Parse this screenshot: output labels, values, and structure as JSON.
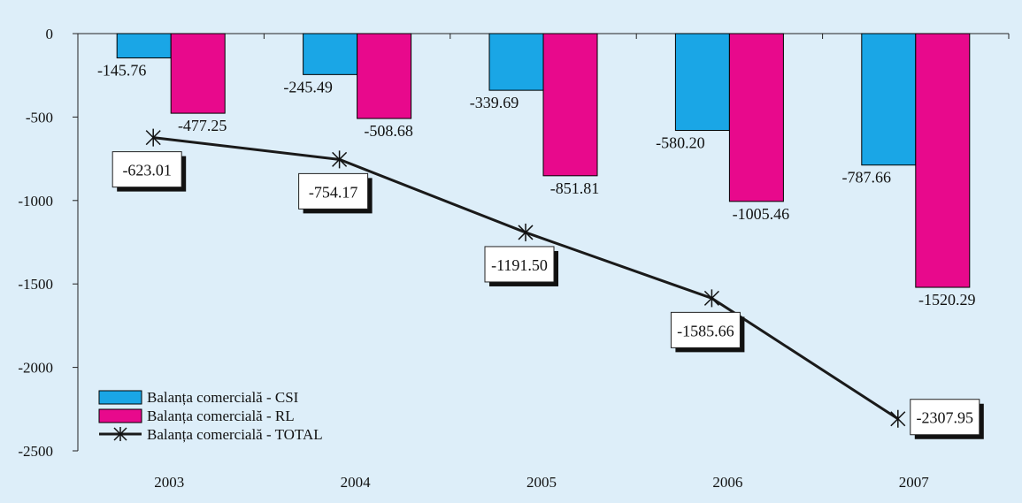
{
  "chart_data": {
    "type": "bar",
    "categories": [
      "2003",
      "2004",
      "2005",
      "2006",
      "2007"
    ],
    "series": [
      {
        "name": "Balanța comercială - CSI",
        "kind": "bar",
        "color": "#1aa6e6",
        "values": [
          -145.76,
          -245.49,
          -339.69,
          -580.2,
          -787.66
        ],
        "labels": [
          "-145.76",
          "-245.49",
          "-339.69",
          "-580.20",
          "-787.66"
        ]
      },
      {
        "name": "Balanța comercială - RL",
        "kind": "bar",
        "color": "#e8098c",
        "values": [
          -477.25,
          -508.68,
          -851.81,
          -1005.46,
          -1520.29
        ],
        "labels": [
          "-477.25",
          "-508.68",
          "-851.81",
          "-1005.46",
          "-1520.29"
        ]
      },
      {
        "name": "Balanța comercială - TOTAL",
        "kind": "line",
        "color": "#1a1a1a",
        "marker": "asterisk",
        "values": [
          -623.01,
          -754.17,
          -1191.5,
          -1585.66,
          -2307.95
        ],
        "labels": [
          "-623.01",
          "-754.17",
          "-1191.50",
          "-1585.66",
          "-2307.95"
        ]
      }
    ],
    "ylim": [
      -2500,
      0
    ],
    "yticks": [
      0,
      -500,
      -1000,
      -1500,
      -2000,
      -2500
    ],
    "ytick_labels": [
      "0",
      "-500",
      "-1000",
      "-1500",
      "-2000",
      "-2500"
    ],
    "grid": false,
    "legend_position": "bottom-left",
    "background": "#ddeef9"
  }
}
